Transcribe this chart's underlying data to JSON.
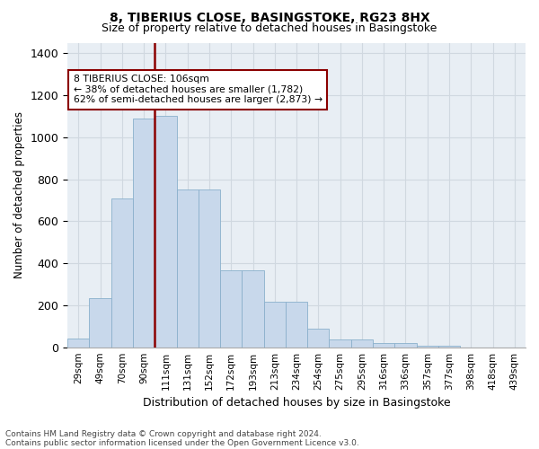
{
  "title1": "8, TIBERIUS CLOSE, BASINGSTOKE, RG23 8HX",
  "title2": "Size of property relative to detached houses in Basingstoke",
  "xlabel": "Distribution of detached houses by size in Basingstoke",
  "ylabel": "Number of detached properties",
  "footnote1": "Contains HM Land Registry data © Crown copyright and database right 2024.",
  "footnote2": "Contains public sector information licensed under the Open Government Licence v3.0.",
  "annotation_line1": "8 TIBERIUS CLOSE: 106sqm",
  "annotation_line2": "← 38% of detached houses are smaller (1,782)",
  "annotation_line3": "62% of semi-detached houses are larger (2,873) →",
  "bar_labels": [
    "29sqm",
    "49sqm",
    "70sqm",
    "90sqm",
    "111sqm",
    "131sqm",
    "152sqm",
    "172sqm",
    "193sqm",
    "213sqm",
    "234sqm",
    "254sqm",
    "275sqm",
    "295sqm",
    "316sqm",
    "336sqm",
    "357sqm",
    "377sqm",
    "398sqm",
    "418sqm",
    "439sqm"
  ],
  "bar_values": [
    40,
    235,
    710,
    1090,
    1100,
    750,
    750,
    365,
    365,
    215,
    215,
    90,
    35,
    35,
    20,
    20,
    8,
    8,
    0,
    0,
    0
  ],
  "bar_color": "#c8d8eb",
  "bar_edge_color": "#8ab0cc",
  "vline_x": 4.5,
  "vline_color": "#8b0000",
  "ylim": [
    0,
    1450
  ],
  "yticks": [
    0,
    200,
    400,
    600,
    800,
    1000,
    1200,
    1400
  ],
  "grid_color": "#d0d8e0",
  "bg_color": "#e8eef4",
  "annotation_box_color": "#ffffff",
  "annotation_box_edge": "#8b0000"
}
